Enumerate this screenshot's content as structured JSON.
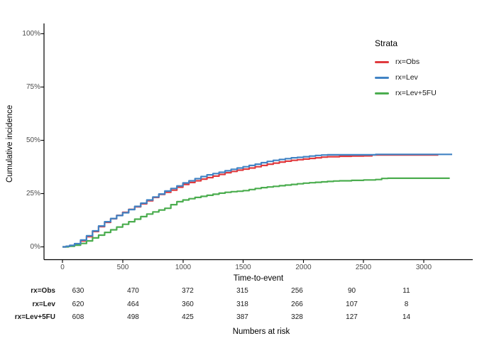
{
  "figure": {
    "y_axis_label": "Cumulative incidence",
    "x_axis_label": "Time-to-event",
    "y_ticks": [
      "100%",
      "75%",
      "50%",
      "25%",
      "0%"
    ],
    "x_ticks": [
      "0",
      "500",
      "1000",
      "1500",
      "2000",
      "2500",
      "3000"
    ]
  },
  "legend": {
    "title": "Strata",
    "items": [
      {
        "label": "rx=Obs",
        "color": "#E03A3E"
      },
      {
        "label": "rx=Lev",
        "color": "#4183C4"
      },
      {
        "label": "rx=Lev+5FU",
        "color": "#4BAD4F"
      }
    ]
  },
  "risk_table": {
    "title": "Numbers at risk",
    "rows": [
      {
        "label": "rx=Obs",
        "values": [
          "630",
          "470",
          "372",
          "315",
          "256",
          "90",
          "11"
        ]
      },
      {
        "label": "rx=Lev",
        "values": [
          "620",
          "464",
          "360",
          "318",
          "266",
          "107",
          "8"
        ]
      },
      {
        "label": "rx=Lev+5FU",
        "values": [
          "608",
          "498",
          "425",
          "387",
          "328",
          "127",
          "14"
        ]
      }
    ]
  },
  "chart_data": {
    "type": "line",
    "subtype": "cumulative-incidence-step-curves",
    "title": "",
    "xlabel": "Time-to-event",
    "ylabel": "Cumulative incidence",
    "xlim": [
      0,
      3340
    ],
    "ylim_percent": [
      0,
      100
    ],
    "x_tick_values": [
      0,
      500,
      1000,
      1500,
      2000,
      2500,
      3000
    ],
    "y_tick_values_percent": [
      0,
      25,
      50,
      75,
      100
    ],
    "grid": false,
    "legend_position": "right",
    "legend_title": "Strata",
    "interpolation": "step-after",
    "series": [
      {
        "name": "rx=Obs",
        "color": "#E03A3E",
        "points": [
          [
            0,
            0
          ],
          [
            30,
            0.2
          ],
          [
            60,
            0.6
          ],
          [
            100,
            1.2
          ],
          [
            150,
            2.8
          ],
          [
            200,
            4.8
          ],
          [
            250,
            7.2
          ],
          [
            300,
            9.5
          ],
          [
            350,
            11.5
          ],
          [
            400,
            13.2
          ],
          [
            450,
            14.8
          ],
          [
            500,
            16.2
          ],
          [
            550,
            17.6
          ],
          [
            600,
            18.8
          ],
          [
            650,
            20.2
          ],
          [
            700,
            21.6
          ],
          [
            750,
            23.2
          ],
          [
            800,
            24.6
          ],
          [
            850,
            25.6
          ],
          [
            900,
            26.6
          ],
          [
            950,
            28
          ],
          [
            1000,
            29.3
          ],
          [
            1050,
            30.2
          ],
          [
            1100,
            31
          ],
          [
            1150,
            31.8
          ],
          [
            1200,
            32.5
          ],
          [
            1250,
            33.2
          ],
          [
            1300,
            34
          ],
          [
            1350,
            34.8
          ],
          [
            1400,
            35.4
          ],
          [
            1450,
            36
          ],
          [
            1500,
            36.5
          ],
          [
            1550,
            37
          ],
          [
            1600,
            37.6
          ],
          [
            1650,
            38.2
          ],
          [
            1700,
            38.8
          ],
          [
            1750,
            39.3
          ],
          [
            1800,
            39.8
          ],
          [
            1850,
            40.2
          ],
          [
            1900,
            40.6
          ],
          [
            1950,
            40.9
          ],
          [
            2000,
            41.2
          ],
          [
            2050,
            41.5
          ],
          [
            2100,
            41.8
          ],
          [
            2150,
            42.1
          ],
          [
            2200,
            42.3
          ],
          [
            2300,
            42.5
          ],
          [
            2400,
            42.6
          ],
          [
            2500,
            42.7
          ],
          [
            2570,
            43.1
          ],
          [
            3120,
            43.1
          ]
        ]
      },
      {
        "name": "rx=Lev",
        "color": "#4183C4",
        "points": [
          [
            0,
            0
          ],
          [
            30,
            0.3
          ],
          [
            60,
            0.7
          ],
          [
            100,
            1.5
          ],
          [
            150,
            3.2
          ],
          [
            200,
            5.2
          ],
          [
            250,
            7.5
          ],
          [
            300,
            9.8
          ],
          [
            350,
            11.8
          ],
          [
            400,
            13.3
          ],
          [
            450,
            14.7
          ],
          [
            500,
            16
          ],
          [
            550,
            17.5
          ],
          [
            600,
            19
          ],
          [
            650,
            20.5
          ],
          [
            700,
            22
          ],
          [
            750,
            23.4
          ],
          [
            800,
            24.8
          ],
          [
            850,
            26.2
          ],
          [
            900,
            27.4
          ],
          [
            950,
            28.6
          ],
          [
            1000,
            30
          ],
          [
            1050,
            31
          ],
          [
            1100,
            32
          ],
          [
            1150,
            33
          ],
          [
            1200,
            33.8
          ],
          [
            1250,
            34.4
          ],
          [
            1300,
            35
          ],
          [
            1350,
            35.7
          ],
          [
            1400,
            36.4
          ],
          [
            1450,
            37
          ],
          [
            1500,
            37.6
          ],
          [
            1550,
            38.2
          ],
          [
            1600,
            38.8
          ],
          [
            1650,
            39.5
          ],
          [
            1700,
            40.1
          ],
          [
            1750,
            40.6
          ],
          [
            1800,
            41
          ],
          [
            1850,
            41.4
          ],
          [
            1900,
            41.8
          ],
          [
            1950,
            42
          ],
          [
            2000,
            42.3
          ],
          [
            2050,
            42.6
          ],
          [
            2100,
            42.9
          ],
          [
            2150,
            43.1
          ],
          [
            2200,
            43.2
          ],
          [
            2350,
            43.2
          ],
          [
            2600,
            43.4
          ],
          [
            3235,
            43.4
          ]
        ]
      },
      {
        "name": "rx=Lev+5FU",
        "color": "#4BAD4F",
        "points": [
          [
            0,
            0
          ],
          [
            50,
            0.3
          ],
          [
            100,
            0.8
          ],
          [
            150,
            1.6
          ],
          [
            200,
            2.8
          ],
          [
            250,
            4.2
          ],
          [
            300,
            5.5
          ],
          [
            350,
            6.8
          ],
          [
            400,
            8
          ],
          [
            450,
            9.3
          ],
          [
            500,
            10.6
          ],
          [
            550,
            11.8
          ],
          [
            600,
            13
          ],
          [
            650,
            14.2
          ],
          [
            700,
            15.4
          ],
          [
            750,
            16.4
          ],
          [
            800,
            17.3
          ],
          [
            850,
            18.1
          ],
          [
            900,
            19.8
          ],
          [
            950,
            21.2
          ],
          [
            1000,
            22
          ],
          [
            1050,
            22.6
          ],
          [
            1100,
            23.2
          ],
          [
            1150,
            23.7
          ],
          [
            1200,
            24.2
          ],
          [
            1250,
            24.7
          ],
          [
            1300,
            25.2
          ],
          [
            1350,
            25.6
          ],
          [
            1400,
            25.9
          ],
          [
            1450,
            26.1
          ],
          [
            1500,
            26.4
          ],
          [
            1550,
            26.9
          ],
          [
            1600,
            27.4
          ],
          [
            1650,
            27.8
          ],
          [
            1700,
            28.1
          ],
          [
            1750,
            28.4
          ],
          [
            1800,
            28.7
          ],
          [
            1850,
            29
          ],
          [
            1900,
            29.3
          ],
          [
            1950,
            29.6
          ],
          [
            2000,
            29.9
          ],
          [
            2050,
            30.1
          ],
          [
            2100,
            30.3
          ],
          [
            2150,
            30.5
          ],
          [
            2200,
            30.7
          ],
          [
            2250,
            30.9
          ],
          [
            2300,
            31
          ],
          [
            2400,
            31.2
          ],
          [
            2500,
            31.4
          ],
          [
            2600,
            31.6
          ],
          [
            2650,
            32.1
          ],
          [
            2700,
            32.2
          ],
          [
            3215,
            32.2
          ]
        ]
      }
    ],
    "risk_table": {
      "title": "Numbers at risk",
      "time_points": [
        0,
        500,
        1000,
        1500,
        2000,
        2500,
        3000
      ],
      "rows": [
        {
          "name": "rx=Obs",
          "at_risk": [
            630,
            470,
            372,
            315,
            256,
            90,
            11
          ]
        },
        {
          "name": "rx=Lev",
          "at_risk": [
            620,
            464,
            360,
            318,
            266,
            107,
            8
          ]
        },
        {
          "name": "rx=Lev+5FU",
          "at_risk": [
            608,
            498,
            425,
            387,
            328,
            127,
            14
          ]
        }
      ]
    }
  }
}
